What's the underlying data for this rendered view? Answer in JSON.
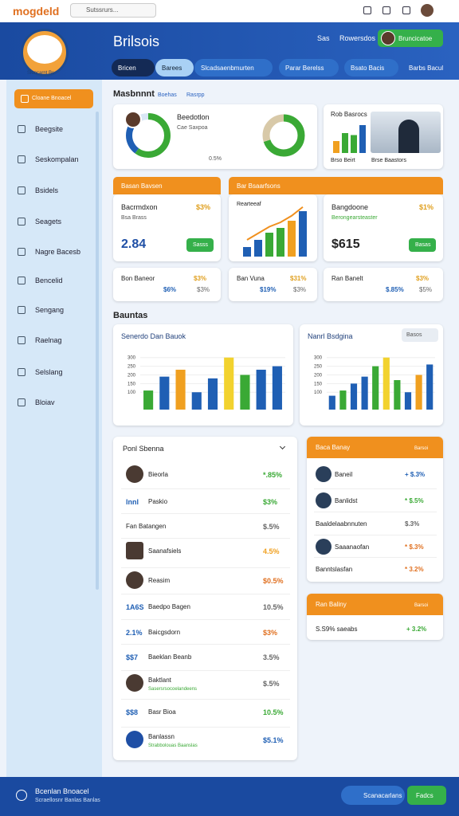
{
  "header": {
    "logo": "mogdeld",
    "search": "Sutssrurs..."
  },
  "banner": {
    "badge": "Sloncarnt Bs",
    "title": "Brilsois",
    "actions": [
      "Sas",
      "Rowersdos"
    ],
    "cta": "Bruncicatoe",
    "tabs": [
      "Bricen",
      "Barees",
      "Slcadsaenbmurten",
      "Parar Berelss",
      "Bsato Bacis",
      "Barbs Bacul"
    ]
  },
  "sidebar": [
    "Cloane Bnoacel",
    "Beegsite",
    "Seskompalan",
    "Bsidels",
    "Seagets",
    "Nagre Bacesb",
    "Bencelid",
    "Sengang",
    "Raelnag",
    "Selslang",
    "Bloiav"
  ],
  "overview": {
    "title": "Masbnnnt",
    "tabs": [
      "Boehas",
      "Rasrpp"
    ],
    "profile": {
      "name": "Beedotlon",
      "sub": "Cae Saxpoa",
      "pct": "0.5%"
    },
    "donut1": {
      "values": [
        60,
        30,
        10
      ],
      "colors": [
        "#3aa935",
        "#1f5fb4",
        "#d9e7f5"
      ]
    },
    "donut2": {
      "values": [
        70,
        30
      ],
      "colors": [
        "#3aa935",
        "#d8c9a8"
      ]
    },
    "media": {
      "title": "Rob Basrocs",
      "captions": [
        "Brso Beirt",
        "Brse Baastors"
      ],
      "values": [
        30,
        50,
        45,
        70
      ],
      "colors": [
        "#f0a020",
        "#3aa935",
        "#3aa935",
        "#1f5fb4"
      ]
    }
  },
  "stats": {
    "headers": [
      "Basan Bavsen",
      "Bar Bsaarfsons"
    ],
    "left": {
      "title": "Bacrmdxon",
      "pct": "$3%",
      "sub": "Bsa Brass",
      "value": "2.84",
      "button": "Sasss"
    },
    "middle": {
      "title": "Rearteeaf",
      "values": [
        20,
        35,
        50,
        60,
        75,
        95
      ],
      "colors": [
        "#1f5fb4",
        "#1f5fb4",
        "#3aa935",
        "#3aa935",
        "#f0a020",
        "#1f5fb4"
      ]
    },
    "right": {
      "title": "Bangdoone",
      "pct": "$1%",
      "sub": "Berongearsteaster",
      "value": "$615",
      "button": "Basas"
    },
    "small": [
      {
        "title": "Bon Baneor",
        "a": "$3%",
        "b": "$6%",
        "c": "$3%"
      },
      {
        "title": "Ban Vuna",
        "a": "$31%",
        "b": "$19%",
        "c": "$3%"
      },
      {
        "title": "Ran Banelt",
        "a": "$3%",
        "b": "$.85%",
        "c": "$5%"
      }
    ]
  },
  "section": "Bauntas",
  "chart1": {
    "title": "Senerdo Dan Bauok",
    "ylim": [
      0,
      340
    ],
    "yticks": [
      100,
      150,
      200,
      250,
      300
    ],
    "values": [
      110,
      190,
      230,
      100,
      180,
      300,
      200,
      230,
      250
    ],
    "colors": [
      "#3aa935",
      "#1f5fb4",
      "#f0a020",
      "#1f5fb4",
      "#1f5fb4",
      "#f2d22e",
      "#3aa935",
      "#1f5fb4",
      "#1f5fb4"
    ]
  },
  "chart2": {
    "title": "Nanrl Bsdgina",
    "button": "Basos",
    "ylim": [
      0,
      340
    ],
    "yticks": [
      100,
      150,
      200,
      250,
      300
    ],
    "values": [
      80,
      110,
      150,
      190,
      250,
      300,
      170,
      100,
      200,
      260
    ],
    "colors": [
      "#1f5fb4",
      "#3aa935",
      "#1f5fb4",
      "#1f5fb4",
      "#3aa935",
      "#f2d22e",
      "#3aa935",
      "#1f5fb4",
      "#f0a020",
      "#1f5fb4"
    ]
  },
  "list": {
    "title": "Ponl Sbenna",
    "rows": [
      {
        "name": "Bieorla",
        "value": "*.85%",
        "color": "#3aa935"
      },
      {
        "tag": "lnnl",
        "name": "Paskio",
        "value": "$3%",
        "color": "#3aa935"
      },
      {
        "name": "Fan Batangen",
        "value": "$.5%",
        "color": "#666666"
      },
      {
        "name": "Saanafsiels",
        "value": "4.5%",
        "color": "#f0a020"
      },
      {
        "name": "Reasim",
        "value": "$0.5%",
        "color": "#e07020"
      },
      {
        "tag": "1A6S",
        "name": "Baedpo Bagen",
        "value": "10.5%",
        "color": "#666666"
      },
      {
        "tag": "2.1%",
        "name": "Baicgsdorn",
        "value": "$3%",
        "color": "#e07020"
      },
      {
        "tag": "$$7",
        "name": "Baeklan Beanb",
        "value": "3.5%",
        "color": "#666666"
      },
      {
        "name": "Baktlant",
        "sub": "Sasersrsocoelandeens",
        "value": "$.5%",
        "color": "#666666"
      },
      {
        "tag": "$$8",
        "name": "Basr Bioa",
        "value": "10.5%",
        "color": "#3aa935"
      },
      {
        "name": "Banlassn",
        "sub": "Strabbolouas Baanslas",
        "value": "$5.1%",
        "color": "#1f5fb4"
      }
    ]
  },
  "side1": {
    "title": "Baca Banay",
    "note": "Barsoi",
    "rows": [
      {
        "name": "Baneil",
        "value": "+ $.3%",
        "color": "#1f5fb4"
      },
      {
        "name": "Banlidst",
        "value": "* $.5%",
        "color": "#3aa935"
      },
      {
        "name": "Baaldelaabnnuten",
        "value": "$.3%",
        "color": "#666666"
      },
      {
        "name": "Saaanaofan",
        "value": "* $.3%",
        "color": "#e07020"
      },
      {
        "name": "Banntslasfan",
        "value": "* 3.2%",
        "color": "#e07020"
      }
    ]
  },
  "side2": {
    "title": "Ran Baliny",
    "note": "Barsoi",
    "row": "S.S9% saeabs",
    "value": "+ 3.2%"
  },
  "footer": {
    "title": "Bcenlan Bnoacel",
    "sub": "Scraellosnr Banlas Banlas",
    "buttons": [
      "Scanacarlans",
      "Fadcs"
    ]
  }
}
